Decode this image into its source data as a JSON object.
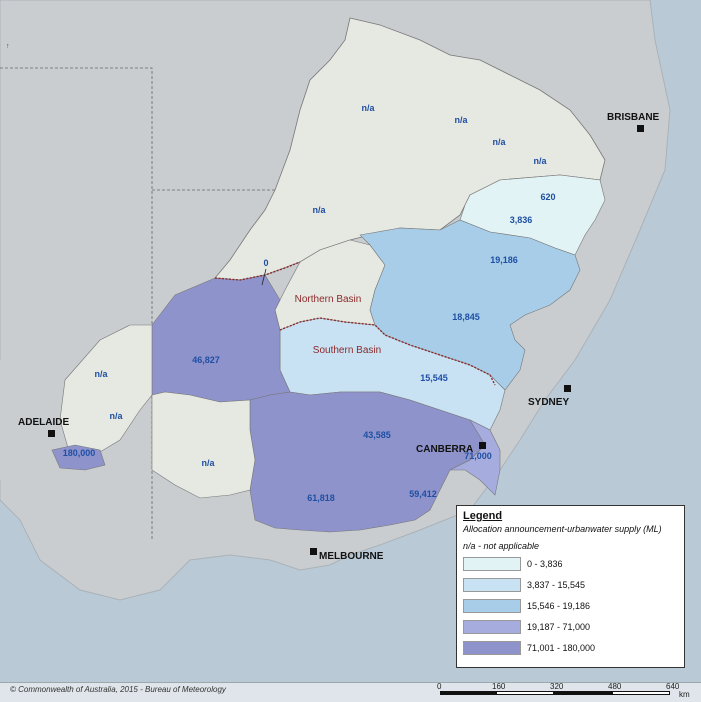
{
  "legend": {
    "title": "Legend",
    "subtitle": "Allocation announcement-urbanwater supply (ML)",
    "note": "n/a - not applicable",
    "classes": [
      {
        "label": "0 - 3,836",
        "color": "#e1f3f4"
      },
      {
        "label": "3,837 - 15,545",
        "color": "#c8e1f3"
      },
      {
        "label": "15,546 - 19,186",
        "color": "#a8cde8"
      },
      {
        "label": "19,187 - 71,000",
        "color": "#a6acde"
      },
      {
        "label": "71,001 - 180,000",
        "color": "#8e93cb"
      }
    ]
  },
  "basins": {
    "northern": "Northern Basin",
    "southern": "Southern Basin"
  },
  "cities": {
    "brisbane": "BRISBANE",
    "sydney": "SYDNEY",
    "canberra": "CANBERRA",
    "melbourne": "MELBOURNE",
    "adelaide": "ADELAIDE"
  },
  "regions": {
    "r620": "620",
    "r3836": "3,836",
    "r19186": "19,186",
    "r18845": "18,845",
    "r15545": "15,545",
    "r46827": "46,827",
    "r43585": "43,585",
    "r71000": "71,000",
    "r61818": "61,818",
    "r59412": "59,412",
    "r180000": "180,000",
    "r0": "0",
    "na1": "n/a",
    "na2": "n/a",
    "na3": "n/a",
    "na4": "n/a",
    "na5": "n/a",
    "na6": "n/a",
    "na7": "n/a",
    "na8": "n/a"
  },
  "copyright": "© Commonwealth of Australia, 2015 - Bureau of Meteorology",
  "scale": {
    "ticks": [
      "0",
      "160",
      "320",
      "480",
      "640"
    ],
    "unit": "km"
  },
  "colors": {
    "sea": "#b9cad6",
    "land": "#c9cdd0",
    "na_region": "#e6e8e2",
    "basin_border": "#8b2b2b"
  }
}
